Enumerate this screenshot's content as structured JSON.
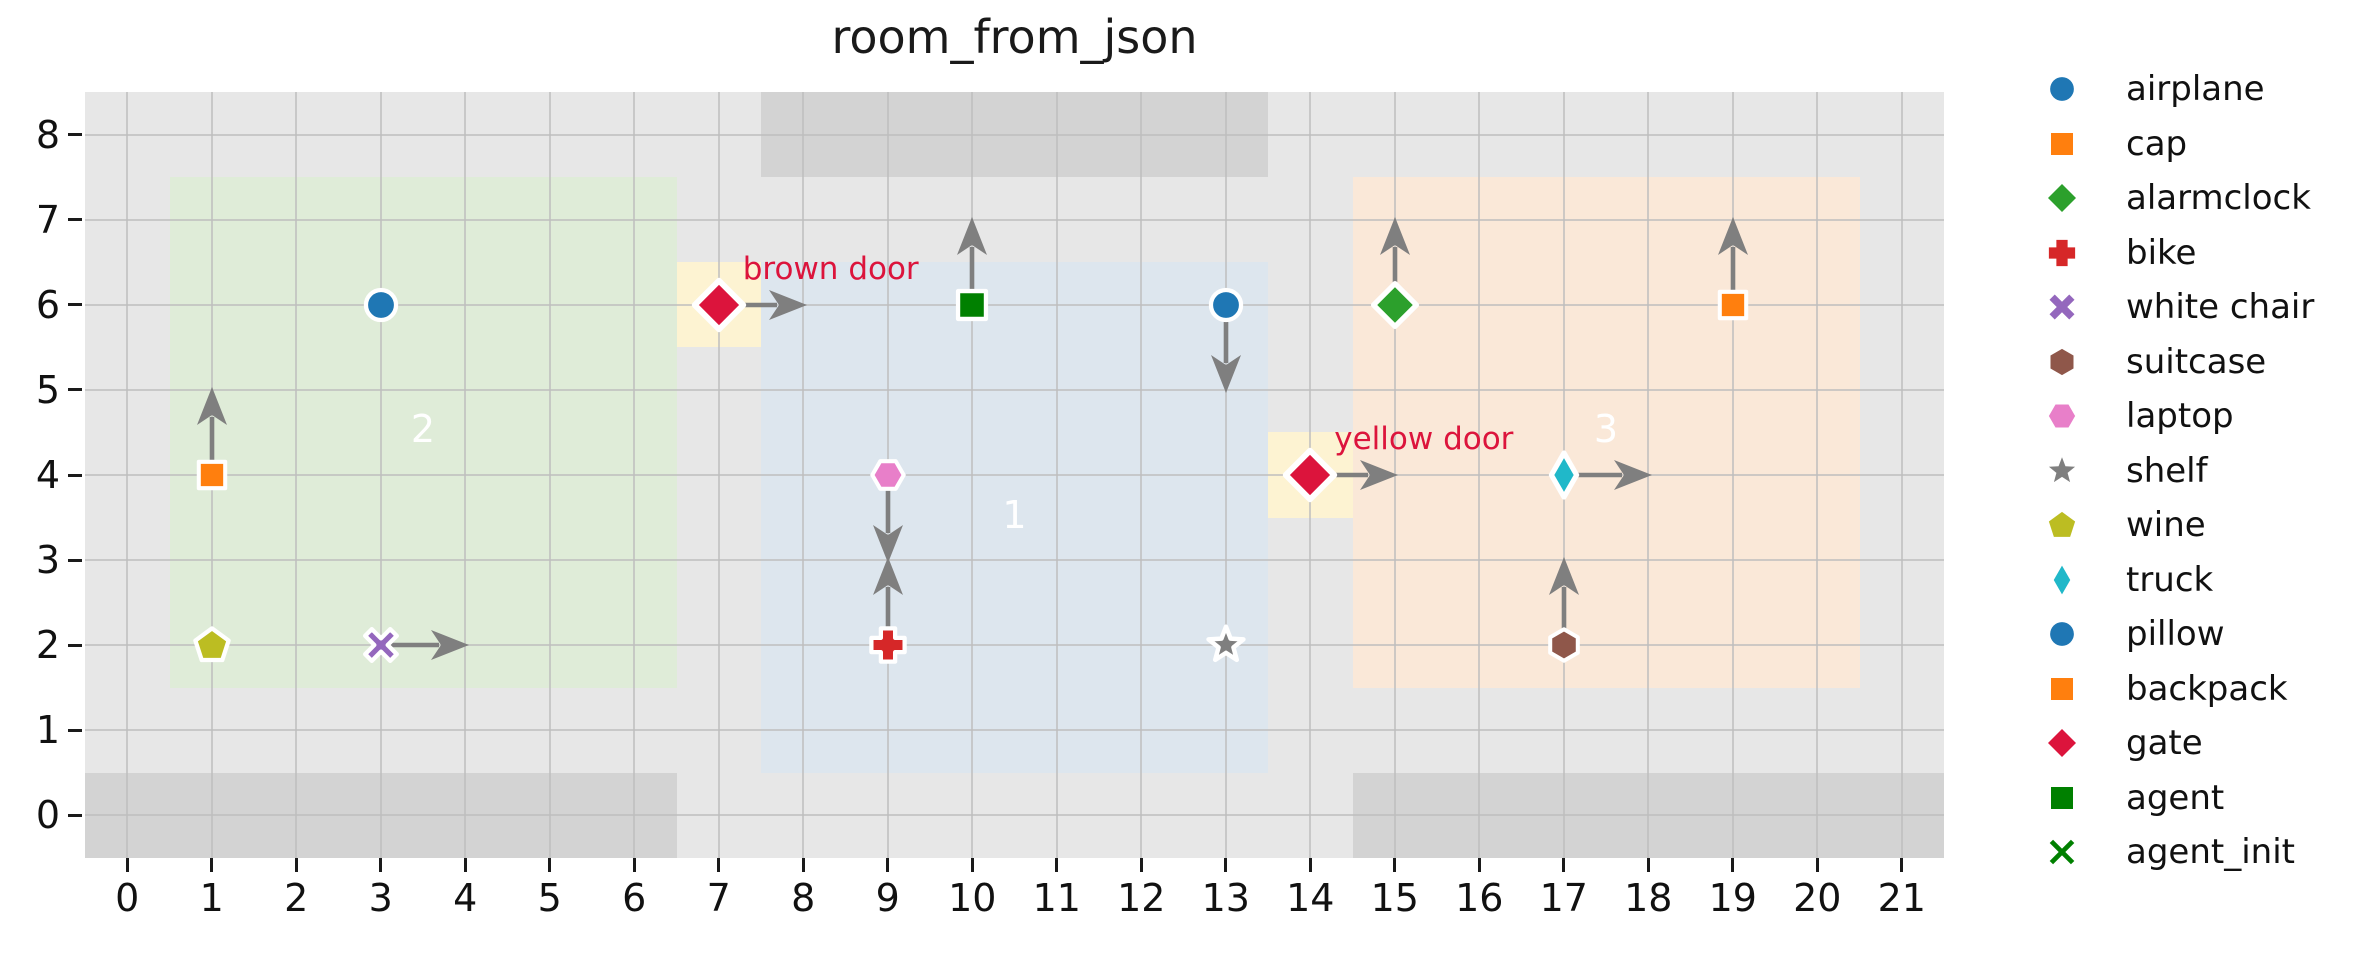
{
  "title": "room_from_json",
  "chart_data": {
    "type": "scatter",
    "title": "room_from_json",
    "xlim": [
      -0.5,
      21.5
    ],
    "ylim": [
      -0.5,
      8.5
    ],
    "x_ticks": [
      0,
      1,
      2,
      3,
      4,
      5,
      6,
      7,
      8,
      9,
      10,
      11,
      12,
      13,
      14,
      15,
      16,
      17,
      18,
      19,
      20,
      21
    ],
    "y_ticks": [
      0,
      1,
      2,
      3,
      4,
      5,
      6,
      7,
      8
    ],
    "grid": true,
    "plot_background": "#e7e7e7",
    "grid_color": "#bdbdbd",
    "wall_color": "#d3d3d3",
    "arrow_color": "#7f7f7f",
    "rooms": [
      {
        "label": "2",
        "bounds": {
          "x0": 0.5,
          "y0": 1.5,
          "x1": 6.5,
          "y1": 7.5
        },
        "fill": "#dfecd8",
        "label_pos": [
          3.5,
          4.5
        ],
        "label_color": "#ffffff"
      },
      {
        "label": "1",
        "bounds": {
          "x0": 7.5,
          "y0": 0.5,
          "x1": 13.5,
          "y1": 6.5
        },
        "fill": "#dde6ee",
        "label_pos": [
          10.5,
          3.5
        ],
        "label_color": "#ffffff"
      },
      {
        "label": "3",
        "bounds": {
          "x0": 14.5,
          "y0": 1.5,
          "x1": 20.5,
          "y1": 7.5
        },
        "fill": "#fae8d8",
        "label_pos": [
          17.5,
          4.5
        ],
        "label_color": "#ffffff"
      }
    ],
    "walls": [
      {
        "x0": -0.5,
        "y0": -0.5,
        "x1": 6.5,
        "y1": 0.5
      },
      {
        "x0": 7.5,
        "y0": 7.5,
        "x1": 13.5,
        "y1": 8.5
      },
      {
        "x0": 14.5,
        "y0": -0.5,
        "x1": 21.5,
        "y1": 0.5
      }
    ],
    "doors": [
      {
        "label": "brown door",
        "pos": [
          7,
          6
        ],
        "marker": "diamond",
        "color": "#dc143c",
        "size": 52,
        "arrow": "right",
        "highlight": {
          "x0": 6.5,
          "y0": 5.5,
          "x1": 7.5,
          "y1": 6.5,
          "fill": "#fdf3d2"
        }
      },
      {
        "label": "yellow door",
        "pos": [
          14,
          4
        ],
        "marker": "diamond",
        "color": "#dc143c",
        "size": 52,
        "arrow": "right",
        "highlight": {
          "x0": 13.5,
          "y0": 3.5,
          "x1": 14.5,
          "y1": 4.5,
          "fill": "#fdf3d2"
        }
      }
    ],
    "objects": [
      {
        "name": "pillow",
        "marker": "circle",
        "color": "#1f77b4",
        "pos": [
          3,
          6
        ],
        "arrow": null,
        "size": 38
      },
      {
        "name": "cap",
        "marker": "square",
        "color": "#ff7f0e",
        "pos": [
          1,
          4
        ],
        "arrow": "up",
        "size": 36
      },
      {
        "name": "wine",
        "marker": "pentagon",
        "color": "#bcbd22",
        "pos": [
          1,
          2
        ],
        "arrow": null,
        "size": 38
      },
      {
        "name": "white chair",
        "marker": "x",
        "color": "#9467bd",
        "pos": [
          3,
          2
        ],
        "arrow": "right",
        "size": 38
      },
      {
        "name": "agent_init",
        "marker": "x-line",
        "color": "#008000",
        "pos": [
          10,
          6
        ],
        "arrow": null,
        "size": 36,
        "note": "overlapped by agent marker"
      },
      {
        "name": "agent",
        "marker": "square",
        "color": "#008000",
        "pos": [
          10,
          6
        ],
        "arrow": "up",
        "size": 38
      },
      {
        "name": "laptop",
        "marker": "hexagon-flat",
        "color": "#e87fc9",
        "pos": [
          9,
          4
        ],
        "arrow": "down",
        "size": 36
      },
      {
        "name": "bike",
        "marker": "plus",
        "color": "#d62728",
        "pos": [
          9,
          2
        ],
        "arrow": "up",
        "size": 38
      },
      {
        "name": "airplane",
        "marker": "circle",
        "color": "#1f77b4",
        "pos": [
          13,
          6
        ],
        "arrow": "down",
        "size": 38
      },
      {
        "name": "shelf",
        "marker": "star",
        "color": "#7f7f7f",
        "pos": [
          13,
          2
        ],
        "arrow": null,
        "size": 40
      },
      {
        "name": "alarmclock",
        "marker": "diamond",
        "color": "#2ca02c",
        "pos": [
          15,
          6
        ],
        "arrow": "up",
        "size": 46
      },
      {
        "name": "truck",
        "marker": "thin-diamond",
        "color": "#20b8c9",
        "pos": [
          17,
          4
        ],
        "arrow": "right",
        "size": 46
      },
      {
        "name": "suitcase",
        "marker": "hexagon-point",
        "color": "#8f574a",
        "pos": [
          17,
          2
        ],
        "arrow": "up",
        "size": 36
      },
      {
        "name": "backpack",
        "marker": "square",
        "color": "#ff7f0e",
        "pos": [
          19,
          6
        ],
        "arrow": "up",
        "size": 36
      }
    ],
    "legend": [
      {
        "label": "airplane",
        "marker": "circle",
        "color": "#1f77b4"
      },
      {
        "label": "cap",
        "marker": "square",
        "color": "#ff7f0e"
      },
      {
        "label": "alarmclock",
        "marker": "diamond",
        "color": "#2ca02c"
      },
      {
        "label": "bike",
        "marker": "plus",
        "color": "#d62728"
      },
      {
        "label": "white chair",
        "marker": "x",
        "color": "#9467bd"
      },
      {
        "label": "suitcase",
        "marker": "hexagon-point",
        "color": "#8f574a"
      },
      {
        "label": "laptop",
        "marker": "hexagon-flat",
        "color": "#e87fc9"
      },
      {
        "label": "shelf",
        "marker": "star",
        "color": "#7f7f7f"
      },
      {
        "label": "wine",
        "marker": "pentagon",
        "color": "#bcbd22"
      },
      {
        "label": "truck",
        "marker": "thin-diamond",
        "color": "#20b8c9"
      },
      {
        "label": "pillow",
        "marker": "circle",
        "color": "#1f77b4"
      },
      {
        "label": "backpack",
        "marker": "square",
        "color": "#ff7f0e"
      },
      {
        "label": "gate",
        "marker": "diamond",
        "color": "#dc143c"
      },
      {
        "label": "agent",
        "marker": "square",
        "color": "#008000"
      },
      {
        "label": "agent_init",
        "marker": "x-line",
        "color": "#008000"
      }
    ]
  }
}
